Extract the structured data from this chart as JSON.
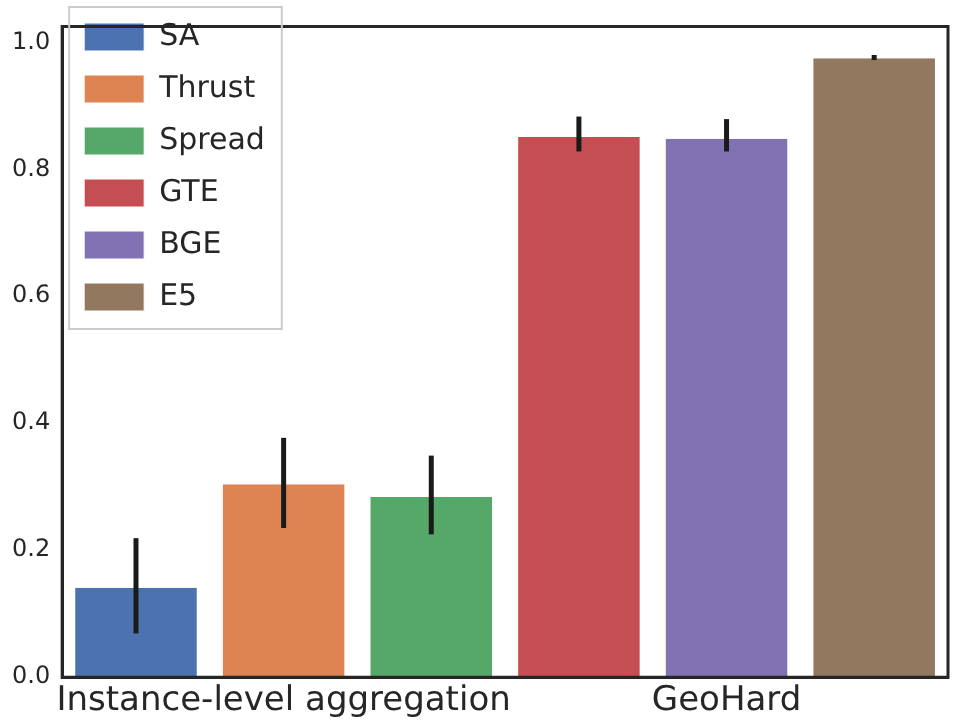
{
  "chart_data": {
    "type": "bar",
    "categories": [
      "Instance-level aggregation",
      "GeoHard"
    ],
    "series": [
      {
        "name": "SA",
        "color": "#4c72b0",
        "values": [
          0.141,
          null
        ],
        "errors": [
          [
            0.069,
            0.219
          ],
          null
        ]
      },
      {
        "name": "Thrust",
        "color": "#dd8452",
        "values": [
          0.304,
          null
        ],
        "errors": [
          [
            0.235,
            0.377
          ],
          null
        ]
      },
      {
        "name": "Spread",
        "color": "#55a868",
        "values": [
          0.284,
          null
        ],
        "errors": [
          [
            0.225,
            0.349
          ],
          null
        ]
      },
      {
        "name": "GTE",
        "color": "#c44e52",
        "values": [
          null,
          0.851
        ],
        "errors": [
          null,
          [
            0.828,
            0.883
          ]
        ]
      },
      {
        "name": "BGE",
        "color": "#8172b3",
        "values": [
          null,
          0.848
        ],
        "errors": [
          null,
          [
            0.828,
            0.879
          ]
        ]
      },
      {
        "name": "E5",
        "color": "#937860",
        "values": [
          null,
          0.975
        ],
        "errors": [
          null,
          [
            0.972,
            0.98
          ]
        ]
      }
    ],
    "ylim": [
      0,
      1.025
    ],
    "yticks": [
      {
        "value": 0,
        "label": "0.0"
      },
      0.2,
      0.4,
      0.6,
      0.8,
      {
        "value": 1,
        "label": "1.0"
      }
    ],
    "grid": false,
    "legend": "top left"
  }
}
